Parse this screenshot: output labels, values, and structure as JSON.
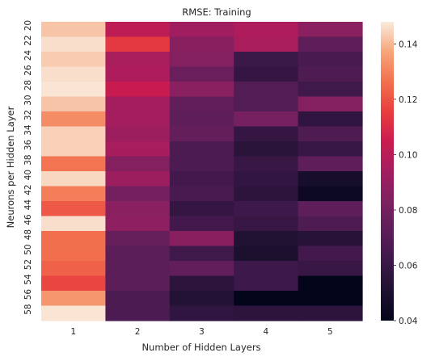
{
  "chart_data": {
    "type": "heatmap",
    "title": "RMSE: Training",
    "xlabel": "Number of Hidden Layers",
    "ylabel": "Neurons per Hidden Layer",
    "x_categories": [
      "1",
      "2",
      "3",
      "4",
      "5"
    ],
    "y_categories": [
      "20",
      "21",
      "22",
      "23",
      "24",
      "25",
      "26",
      "27",
      "28",
      "29",
      "30",
      "31",
      "32",
      "33",
      "34",
      "35",
      "36",
      "37",
      "38",
      "39",
      "40",
      "41",
      "42",
      "43",
      "44",
      "45",
      "46",
      "47",
      "48",
      "49",
      "50",
      "51",
      "52",
      "53",
      "54",
      "55",
      "56",
      "57",
      "58",
      "59"
    ],
    "y_tick_labels_shown": [
      "20",
      "22",
      "24",
      "26",
      "28",
      "30",
      "32",
      "34",
      "36",
      "38",
      "40",
      "42",
      "44",
      "46",
      "48",
      "50",
      "52",
      "54",
      "56",
      "58"
    ],
    "colorbar": {
      "range": [
        0.04,
        0.148
      ],
      "ticks": [
        "0.04",
        "0.06",
        "0.08",
        "0.10",
        "0.12",
        "0.14"
      ],
      "tick_values": [
        0.04,
        0.06,
        0.08,
        0.1,
        0.12,
        0.14
      ],
      "colormap": "rocket"
    },
    "values": [
      [
        0.142,
        0.101,
        0.093,
        0.097,
        0.087
      ],
      [
        0.142,
        0.101,
        0.093,
        0.097,
        0.087
      ],
      [
        0.146,
        0.114,
        0.086,
        0.096,
        0.073
      ],
      [
        0.146,
        0.114,
        0.086,
        0.096,
        0.073
      ],
      [
        0.143,
        0.096,
        0.085,
        0.061,
        0.066
      ],
      [
        0.143,
        0.096,
        0.085,
        0.061,
        0.066
      ],
      [
        0.146,
        0.097,
        0.077,
        0.059,
        0.068
      ],
      [
        0.146,
        0.097,
        0.077,
        0.059,
        0.068
      ],
      [
        0.147,
        0.104,
        0.087,
        0.069,
        0.063
      ],
      [
        0.147,
        0.104,
        0.087,
        0.069,
        0.063
      ],
      [
        0.142,
        0.094,
        0.074,
        0.069,
        0.085
      ],
      [
        0.142,
        0.094,
        0.074,
        0.069,
        0.085
      ],
      [
        0.132,
        0.094,
        0.073,
        0.081,
        0.057
      ],
      [
        0.132,
        0.094,
        0.073,
        0.081,
        0.057
      ],
      [
        0.144,
        0.092,
        0.075,
        0.059,
        0.068
      ],
      [
        0.144,
        0.092,
        0.075,
        0.059,
        0.068
      ],
      [
        0.144,
        0.095,
        0.067,
        0.055,
        0.06
      ],
      [
        0.144,
        0.095,
        0.067,
        0.055,
        0.06
      ],
      [
        0.127,
        0.085,
        0.067,
        0.06,
        0.073
      ],
      [
        0.127,
        0.085,
        0.067,
        0.06,
        0.073
      ],
      [
        0.145,
        0.092,
        0.064,
        0.058,
        0.048
      ],
      [
        0.145,
        0.092,
        0.064,
        0.058,
        0.048
      ],
      [
        0.129,
        0.08,
        0.066,
        0.056,
        0.044
      ],
      [
        0.129,
        0.08,
        0.066,
        0.056,
        0.044
      ],
      [
        0.121,
        0.087,
        0.059,
        0.062,
        0.073
      ],
      [
        0.121,
        0.087,
        0.059,
        0.062,
        0.073
      ],
      [
        0.146,
        0.088,
        0.064,
        0.06,
        0.068
      ],
      [
        0.146,
        0.088,
        0.064,
        0.06,
        0.068
      ],
      [
        0.126,
        0.076,
        0.086,
        0.052,
        0.054
      ],
      [
        0.126,
        0.076,
        0.086,
        0.052,
        0.054
      ],
      [
        0.126,
        0.072,
        0.063,
        0.05,
        0.064
      ],
      [
        0.126,
        0.072,
        0.063,
        0.05,
        0.064
      ],
      [
        0.123,
        0.072,
        0.074,
        0.062,
        0.06
      ],
      [
        0.123,
        0.072,
        0.074,
        0.062,
        0.06
      ],
      [
        0.117,
        0.072,
        0.056,
        0.062,
        0.04
      ],
      [
        0.117,
        0.072,
        0.056,
        0.062,
        0.04
      ],
      [
        0.134,
        0.067,
        0.053,
        0.04,
        0.04
      ],
      [
        0.134,
        0.067,
        0.053,
        0.04,
        0.04
      ],
      [
        0.147,
        0.067,
        0.057,
        0.056,
        0.056
      ],
      [
        0.147,
        0.067,
        0.057,
        0.056,
        0.056
      ]
    ]
  }
}
